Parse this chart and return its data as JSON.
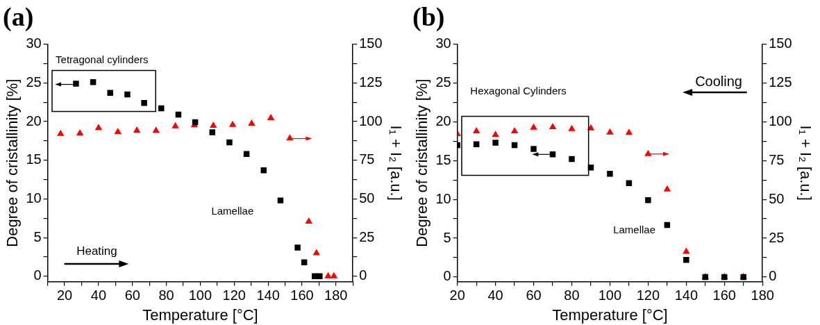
{
  "chart_data": [
    {
      "type": "scatter",
      "title": "(a)",
      "xlabel": "Temperature [°C]",
      "ylabel": "Degree of cristallinity [%]",
      "y2label": "I₁ + I₂ [a.u.]",
      "xlim": [
        10,
        190
      ],
      "xticks": [
        {
          "value": 10,
          "label": null
        },
        20,
        {
          "value": 30,
          "label": null
        },
        40,
        {
          "value": 50,
          "label": null
        },
        60,
        {
          "value": 70,
          "label": null
        },
        80,
        {
          "value": 90,
          "label": null
        },
        100,
        {
          "value": 110,
          "label": null
        },
        120,
        {
          "value": 130,
          "label": null
        },
        140,
        {
          "value": 150,
          "label": null
        },
        160,
        {
          "value": 170,
          "label": null
        },
        180,
        {
          "value": 190,
          "label": null
        }
      ],
      "ylim": [
        -0.7,
        30
      ],
      "yticks": [
        0,
        {
          "value": 2.5,
          "label": null
        },
        5,
        {
          "value": 7.5,
          "label": null
        },
        10,
        {
          "value": 12.5,
          "label": null
        },
        15,
        {
          "value": 17.5,
          "label": null
        },
        20,
        {
          "value": 22.5,
          "label": null
        },
        25,
        {
          "value": 27.5,
          "label": null
        },
        30
      ],
      "y2lim": [
        -3.5,
        150
      ],
      "y2ticks": [
        0,
        {
          "value": 12.5,
          "label": null
        },
        25,
        {
          "value": 37.5,
          "label": null
        },
        50,
        {
          "value": 62.5,
          "label": null
        },
        75,
        {
          "value": 87.5,
          "label": null
        },
        100,
        {
          "value": 112.5,
          "label": null
        },
        125,
        {
          "value": 137.5,
          "label": null
        },
        150
      ],
      "grid": false,
      "legend": false,
      "series": [
        {
          "color": "#000000",
          "marker": "square",
          "axis": "y",
          "x": [
            26.7,
            36.8,
            46.9,
            57,
            66.9,
            77,
            87.1,
            97,
            107.1,
            117.2,
            127.3,
            137.4,
            147.3,
            157.4,
            161.3,
            167.5,
            170.4
          ],
          "values": [
            24.9,
            25.1,
            23.7,
            23.5,
            22.4,
            21.7,
            20.9,
            19.9,
            18.6,
            17.3,
            15.8,
            13.7,
            9.8,
            3.7,
            1.8,
            0,
            0
          ]
        },
        {
          "color": "#ff0000",
          "marker": "triangle",
          "axis": "y2",
          "x": [
            17.6,
            29,
            40,
            51.4,
            62.6,
            73.9,
            85.3,
            96.5,
            107.7,
            119.1,
            130.3,
            141.6,
            152.8,
            164,
            168.5,
            175.4,
            178.8
          ],
          "values": [
            92,
            92.4,
            95.8,
            93.3,
            94.2,
            94.1,
            97,
            97.6,
            97.3,
            97.9,
            98.6,
            102.3,
            89.1,
            35.4,
            15,
            0,
            0
          ]
        }
      ],
      "annotations": [
        "Tetragonal cylinders",
        "Lamellae",
        "Heating"
      ]
    },
    {
      "type": "scatter",
      "title": "(b)",
      "xlabel": "Temperature [°C]",
      "ylabel": "Degree of cristallinity [%]",
      "y2label": "I₁ + I₂ [a.u.]",
      "xlim": [
        20,
        180
      ],
      "xticks": [
        20,
        {
          "value": 30,
          "label": null
        },
        40,
        {
          "value": 50,
          "label": null
        },
        60,
        {
          "value": 70,
          "label": null
        },
        80,
        {
          "value": 90,
          "label": null
        },
        100,
        {
          "value": 110,
          "label": null
        },
        120,
        {
          "value": 130,
          "label": null
        },
        140,
        {
          "value": 150,
          "label": null
        },
        160,
        {
          "value": 170,
          "label": null
        },
        180
      ],
      "ylim": [
        -0.6,
        30
      ],
      "yticks": [
        0,
        {
          "value": 2.5,
          "label": null
        },
        5,
        {
          "value": 7.5,
          "label": null
        },
        10,
        {
          "value": 12.5,
          "label": null
        },
        15,
        {
          "value": 17.5,
          "label": null
        },
        20,
        {
          "value": 22.5,
          "label": null
        },
        25,
        {
          "value": 27.5,
          "label": null
        },
        30
      ],
      "y2lim": [
        -3,
        150
      ],
      "y2ticks": [
        0,
        {
          "value": 12.5,
          "label": null
        },
        25,
        {
          "value": 37.5,
          "label": null
        },
        50,
        {
          "value": 62.5,
          "label": null
        },
        75,
        {
          "value": 87.5,
          "label": null
        },
        100,
        {
          "value": 112.5,
          "label": null
        },
        125,
        {
          "value": 137.5,
          "label": null
        },
        150
      ],
      "grid": false,
      "legend": false,
      "series": [
        {
          "color": "#000000",
          "marker": "square",
          "axis": "y",
          "x": [
            20,
            30,
            40,
            50,
            60,
            70,
            80,
            90,
            100,
            110,
            120,
            130,
            140,
            150,
            160,
            170
          ],
          "values": [
            17,
            17.1,
            17.3,
            17,
            16.5,
            15.8,
            15.2,
            14.1,
            13.3,
            12.1,
            9.9,
            6.7,
            2.2,
            0,
            0,
            0
          ]
        },
        {
          "color": "#ff0000",
          "marker": "triangle",
          "axis": "y2",
          "x": [
            20,
            30,
            40,
            50,
            60,
            70,
            80,
            90,
            100,
            110,
            120,
            130,
            140,
            150,
            160,
            170
          ],
          "values": [
            92.1,
            93.9,
            91.5,
            93.9,
            96.2,
            96.6,
            95.4,
            95.8,
            93.1,
            92.9,
            79.2,
            56.4,
            16.3,
            0,
            0,
            0
          ]
        }
      ],
      "annotations": [
        "Hexagonal Cylinders",
        "Lamellae",
        "Cooling"
      ]
    }
  ]
}
